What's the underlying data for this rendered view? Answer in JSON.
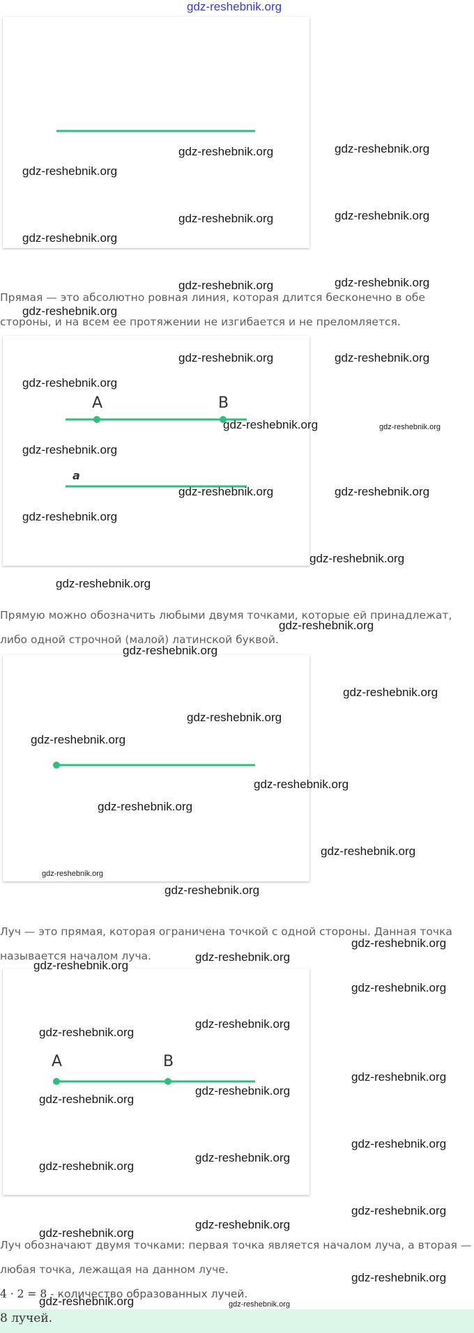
{
  "header_watermark": "gdz-reshebnik.org",
  "watermark": "gdz-reshebnik.org",
  "colors": {
    "line": "#2ebf7d",
    "answer_bg": "#dcf7e9"
  },
  "figures": {
    "fig1": {
      "description_type": "segment"
    },
    "fig2": {
      "point_a": "A",
      "point_b": "B",
      "line_label": "a"
    },
    "fig3": {
      "description_type": "ray"
    },
    "fig4": {
      "point_a": "A",
      "point_b": "B"
    }
  },
  "paragraphs": {
    "p1": "Прямая — это абсолютно ровная линия, которая длится бесконечно в обе стороны, и на всем ее протяжении не изгибается и не преломляется.",
    "p2": "Прямую можно обозначить любыми двумя точками, которые ей принадлежат, либо одной строчной (малой) латинской буквой.",
    "p3": "Луч — это прямая, которая ограничена точкой с одной стороны. Данная точка называется началом луча.",
    "p4": "Луч обозначают двумя точками: первая точка является началом луча, а вторая — любая точка, лежащая на данном луче."
  },
  "formula": {
    "math": "4 · 2 = 8",
    "text": " - количество образованных лучей."
  },
  "answer": {
    "math": "8",
    "text": " лучей."
  }
}
